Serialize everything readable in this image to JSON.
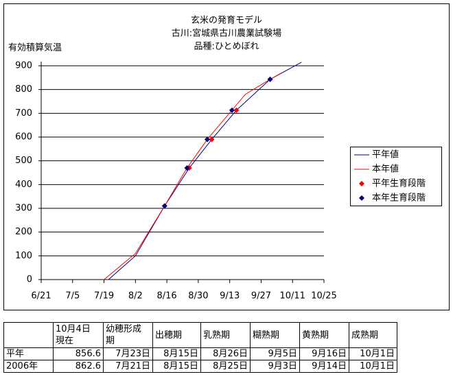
{
  "chart_data": {
    "type": "line",
    "title": [
      "玄米の発育モデル",
      "古川:宮城県古川農業試験場",
      "品種:ひとめぼれ"
    ],
    "ylabel": "有効積算気温",
    "xlim": [
      "6/21",
      "10/25"
    ],
    "xticks": [
      "6/21",
      "7/5",
      "7/19",
      "8/2",
      "8/16",
      "8/30",
      "9/13",
      "9/27",
      "10/11",
      "10/25"
    ],
    "ylim": [
      0,
      900
    ],
    "yticks": [
      0,
      100,
      200,
      300,
      400,
      500,
      600,
      700,
      800,
      900
    ],
    "grid": true,
    "series": [
      {
        "name": "平年値",
        "kind": "line",
        "color": "#000080",
        "x": [
          "7/21",
          "8/2",
          "8/15",
          "8/26",
          "9/5",
          "9/16",
          "10/1",
          "10/15"
        ],
        "values": [
          0,
          100,
          310,
          470,
          590,
          713,
          843,
          915
        ]
      },
      {
        "name": "本年値",
        "kind": "line",
        "color": "#ff0000",
        "x": [
          "7/19",
          "8/2",
          "8/15",
          "8/25",
          "9/3",
          "9/14",
          "9/20",
          "10/1",
          "10/6"
        ],
        "values": [
          0,
          110,
          310,
          470,
          590,
          713,
          780,
          843,
          870
        ]
      },
      {
        "name": "平年生育段階",
        "kind": "marker",
        "color": "#ff0000",
        "x": [
          "8/15",
          "8/26",
          "9/5",
          "9/16",
          "10/1"
        ],
        "values": [
          310,
          470,
          590,
          713,
          843
        ]
      },
      {
        "name": "本年生育段階",
        "kind": "marker",
        "color": "#000080",
        "x": [
          "8/15",
          "8/25",
          "9/3",
          "9/14",
          "10/1"
        ],
        "values": [
          310,
          470,
          590,
          713,
          843
        ]
      }
    ]
  },
  "table": {
    "header": [
      [],
      [
        "10月4日",
        "現在"
      ],
      [
        "幼穂形成",
        "期"
      ],
      [
        "出穂期"
      ],
      [
        "乳熟期"
      ],
      [
        "糊熟期"
      ],
      [
        "黄熟期"
      ],
      [
        "成熟期"
      ]
    ],
    "rows": [
      [
        "平年",
        "856.6",
        "7月23日",
        "8月15日",
        "8月26日",
        "9月5日",
        "9月16日",
        "10月1日"
      ],
      [
        "2006年",
        "862.6",
        "7月21日",
        "8月15日",
        "8月25日",
        "9月3日",
        "9月14日",
        "10月1日"
      ]
    ]
  }
}
